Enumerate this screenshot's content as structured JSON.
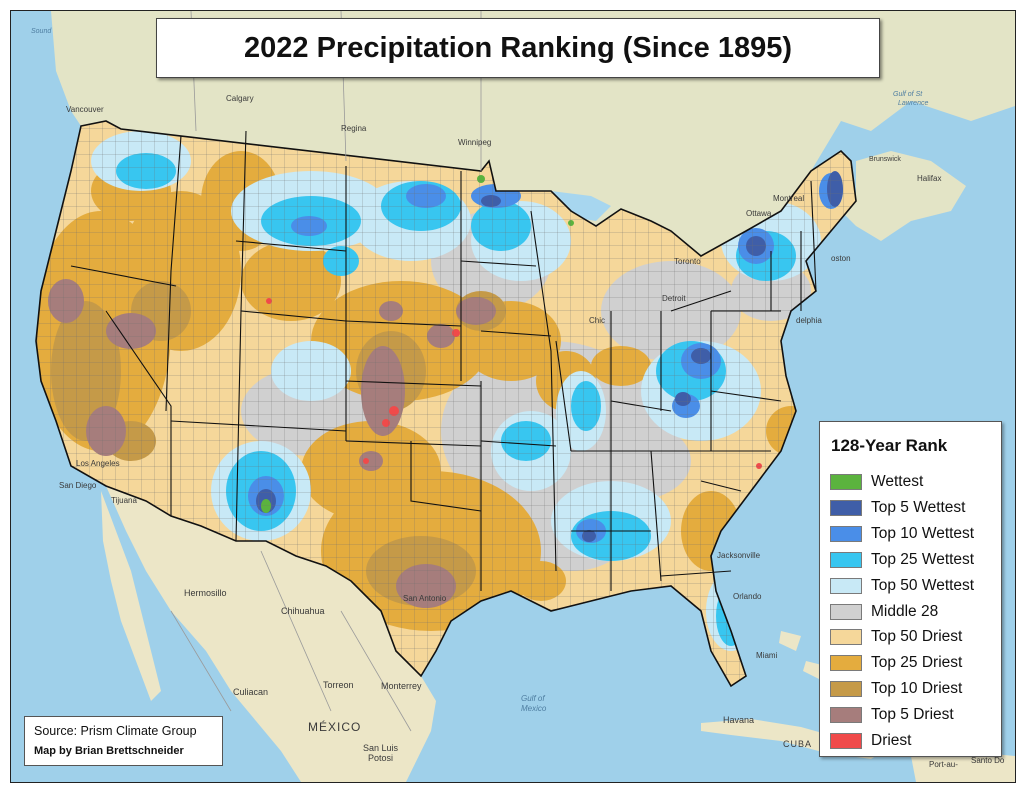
{
  "title": "2022 Precipitation Ranking (Since 1895)",
  "legend": {
    "title": "128-Year Rank",
    "items": [
      {
        "label": "Wettest",
        "color": "#5bb33e"
      },
      {
        "label": "Top 5 Wettest",
        "color": "#3f5ea8"
      },
      {
        "label": "Top 10 Wettest",
        "color": "#4a8ee8"
      },
      {
        "label": "Top 25 Wettest",
        "color": "#38c6f0"
      },
      {
        "label": "Top 50 Wettest",
        "color": "#c8e9f6"
      },
      {
        "label": "Middle 28",
        "color": "#d0d0d0"
      },
      {
        "label": "Top 50 Driest",
        "color": "#f5d79a"
      },
      {
        "label": "Top 25 Driest",
        "color": "#e4ac3e"
      },
      {
        "label": "Top 10 Driest",
        "color": "#c59a48"
      },
      {
        "label": "Top 5 Driest",
        "color": "#a67d7c"
      },
      {
        "label": "Driest",
        "color": "#f04a4a"
      }
    ]
  },
  "credits": {
    "source": "Source: Prism Climate Group",
    "author": "Map by Brian Brettschneider"
  },
  "places": {
    "vancouver": "Vancouver",
    "calgary": "Calgary",
    "regina": "Regina",
    "winnipeg": "Winnipeg",
    "ottawa": "Ottawa",
    "montreal": "Montreal",
    "toronto": "Toronto",
    "detroit": "Detroit",
    "chicago": "Chic",
    "boston": "oston",
    "philadelphia": "delphia",
    "los_angeles": "Los Angeles",
    "san_diego": "San Diego",
    "tijuana": "Tijuana",
    "san_antonio": "San Antonio",
    "jacksonville": "Jacksonville",
    "orlando": "Orlando",
    "miami": "Miami",
    "hermosillo": "Hermosillo",
    "chihuahua": "Chihuahua",
    "culiacan": "Culiacan",
    "torreon": "Torreon",
    "monterrey": "Monterrey",
    "mexico": "MÉXICO",
    "san_luis_potosi_1": "San Luis",
    "san_luis_potosi_2": "Potosi",
    "havana": "Havana",
    "cuba": "CUBA",
    "port_au_prince": "Port-au-",
    "santo_domingo": "Santo Do",
    "halifax": "Halifax",
    "new_brunswick": "Brunswick",
    "strait_sound": "Sound",
    "gulf_of_mexico_1": "Gulf of",
    "gulf_of_mexico_2": "Mexico",
    "gulf_st_lawrence_1": "Gulf of St",
    "gulf_st_lawrence_2": "Lawrence"
  }
}
